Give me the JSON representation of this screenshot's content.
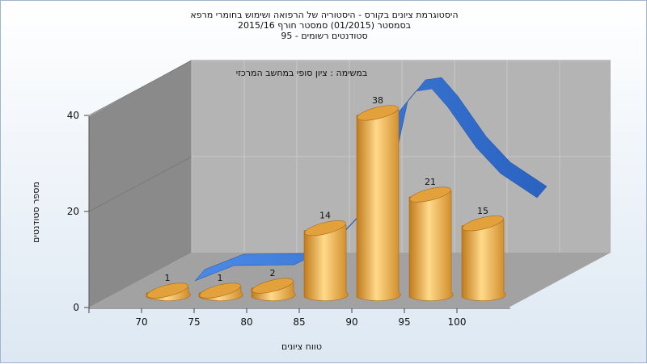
{
  "chart_data": {
    "type": "bar",
    "title_lines": [
      "היסטוגרמת ציונים בקורס - היסטוריה של הרפואה ושימוש בחומרי מרפא",
      "בסמסטר  (01/2015)  סמסטר חורף 2015/16",
      "סטודנטים רשומים - 95"
    ],
    "subtitle": "במשימה : ציון סופי במחשב המרכזי",
    "xlabel": "טווח ציונים",
    "ylabel": "מספר סטודנטים",
    "categories": [
      "70",
      "75",
      "80",
      "85",
      "90",
      "95",
      "100"
    ],
    "values": [
      1,
      1,
      2,
      14,
      38,
      21,
      15
    ],
    "data_labels": [
      "1",
      "1",
      "2",
      "14",
      "38",
      "21",
      "15"
    ],
    "y_ticks": [
      "0",
      "20",
      "40"
    ],
    "ylim": [
      0,
      48
    ],
    "curve_peak_approx": 42,
    "grid": true,
    "colors": {
      "bar": "#e2a13a",
      "bar_light": "#ffd98a",
      "curve": "#2e6fcf",
      "back_wall": "#b4b4b4",
      "side_wall": "#8a8a8a",
      "floor": "#a2a2a2"
    }
  }
}
